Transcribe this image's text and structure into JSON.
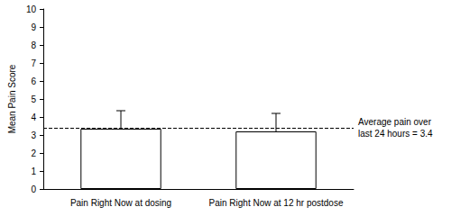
{
  "chart_data": {
    "type": "bar",
    "categories": [
      "Pain Right Now at dosing",
      "Pain Right Now at 12 hr postdose"
    ],
    "values": [
      3.35,
      3.2
    ],
    "error": [
      1.0,
      1.0
    ],
    "color": "#ffffff",
    "y_label": "Mean Pain Score",
    "ylim": [
      0,
      10
    ],
    "yticks": [
      0,
      1,
      2,
      3,
      4,
      5,
      6,
      7,
      8,
      9,
      10
    ],
    "reference_line": {
      "value": 3.4,
      "label": "Average pain over last 24 hours = 3.4"
    },
    "grid": false
  }
}
